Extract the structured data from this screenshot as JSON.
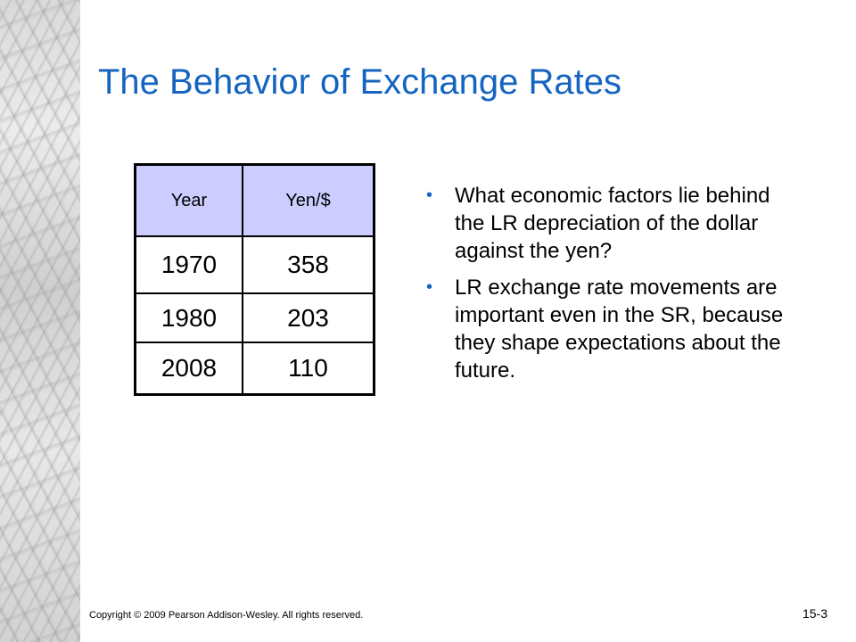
{
  "slide": {
    "title": "The Behavior of Exchange Rates",
    "table": {
      "headers": [
        "Year",
        "Yen/$"
      ],
      "rows": [
        [
          "1970",
          "358"
        ],
        [
          "1980",
          "203"
        ],
        [
          "2008",
          "110"
        ]
      ]
    },
    "bullets": [
      "What economic factors lie behind the LR depreciation of the dollar against the yen?",
      "LR exchange rate movements are important even in the SR, because they shape expectations about the future."
    ],
    "bullet_glyph": "•",
    "copyright": "Copyright © 2009 Pearson Addison-Wesley. All rights reserved.",
    "slide_number": "15-3",
    "colors": {
      "title": "#1565c0",
      "table_header_bg": "#ccccff",
      "bullet": "#1565c0"
    }
  }
}
